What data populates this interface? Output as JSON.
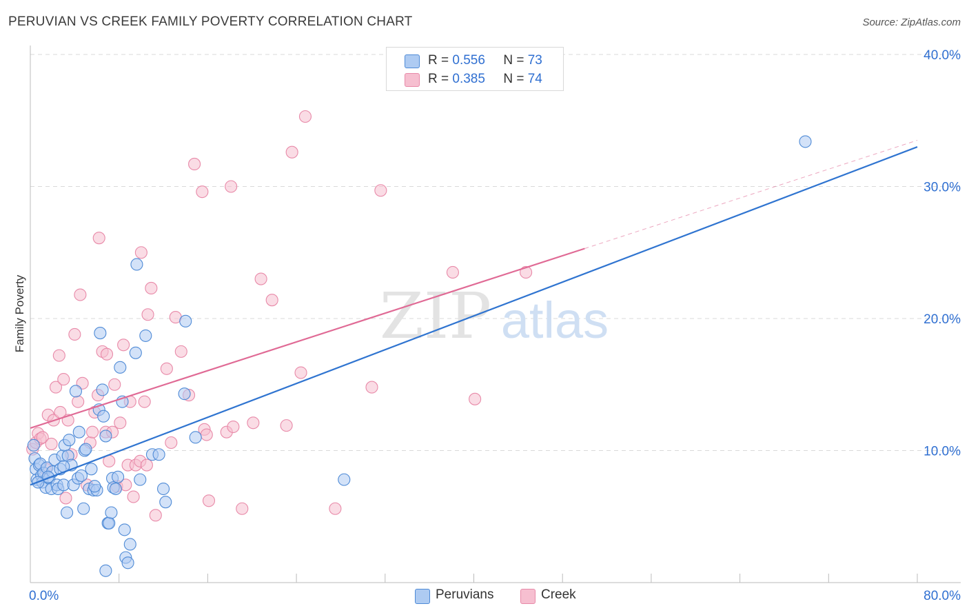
{
  "title": "PERUVIAN VS CREEK FAMILY POVERTY CORRELATION CHART",
  "source": "Source: ZipAtlas.com",
  "watermark": {
    "zip": "ZIP",
    "atlas": "atlas"
  },
  "legend": {
    "peruvians": {
      "r_label": "R =",
      "r": "0.556",
      "n_label": "N =",
      "n": "73"
    },
    "creek": {
      "r_label": "R =",
      "r": "0.385",
      "n_label": "N =",
      "n": "74"
    }
  },
  "colors": {
    "peruvians_fill": "#aecbf2",
    "peruvians_stroke": "#4e8ad6",
    "peruvians_line": "#2f74d0",
    "creek_fill": "#f6bfd0",
    "creek_stroke": "#e889a8",
    "creek_line": "#e06a95",
    "value_text": "#2f6fd1",
    "grid": "#d9d9d9"
  },
  "chart_data": {
    "type": "scatter",
    "title": "PERUVIAN VS CREEK FAMILY POVERTY CORRELATION CHART",
    "xlabel": "",
    "ylabel": "Family Poverty",
    "xlim": [
      0,
      80
    ],
    "ylim": [
      0,
      40
    ],
    "x_tick_labels": [
      "0.0%",
      "80.0%"
    ],
    "y_ticks": [
      10,
      20,
      30,
      40
    ],
    "y_tick_labels": [
      "10.0%",
      "20.0%",
      "30.0%",
      "40.0%"
    ],
    "grid": true,
    "legend_position": "top-center",
    "series": [
      {
        "name": "Peruvians",
        "r": 0.556,
        "n": 73,
        "trend": {
          "x0": 0,
          "y0": 7.4,
          "x1": 80,
          "y1": 33.0
        },
        "points": [
          [
            0.3,
            10.4
          ],
          [
            0.4,
            9.4
          ],
          [
            0.5,
            8.6
          ],
          [
            0.6,
            7.8
          ],
          [
            0.8,
            8.9
          ],
          [
            0.9,
            9.0
          ],
          [
            1.0,
            8.1
          ],
          [
            1.1,
            7.6
          ],
          [
            1.2,
            8.3
          ],
          [
            1.4,
            7.2
          ],
          [
            1.5,
            8.7
          ],
          [
            1.7,
            7.9
          ],
          [
            1.9,
            7.1
          ],
          [
            2.0,
            8.4
          ],
          [
            2.2,
            9.3
          ],
          [
            2.4,
            7.4
          ],
          [
            2.5,
            7.1
          ],
          [
            2.7,
            8.6
          ],
          [
            2.9,
            9.6
          ],
          [
            3.0,
            7.4
          ],
          [
            3.1,
            10.4
          ],
          [
            3.3,
            5.3
          ],
          [
            3.4,
            9.6
          ],
          [
            3.5,
            10.8
          ],
          [
            3.7,
            8.9
          ],
          [
            3.9,
            7.4
          ],
          [
            4.1,
            14.5
          ],
          [
            4.3,
            7.9
          ],
          [
            4.4,
            11.4
          ],
          [
            4.6,
            8.1
          ],
          [
            4.8,
            5.6
          ],
          [
            4.9,
            10.0
          ],
          [
            5.0,
            10.1
          ],
          [
            5.3,
            7.1
          ],
          [
            5.5,
            8.6
          ],
          [
            5.7,
            7.0
          ],
          [
            6.0,
            7.0
          ],
          [
            6.2,
            13.1
          ],
          [
            6.3,
            18.9
          ],
          [
            6.5,
            14.6
          ],
          [
            6.6,
            12.6
          ],
          [
            6.8,
            11.1
          ],
          [
            7.0,
            4.5
          ],
          [
            7.1,
            4.5
          ],
          [
            7.3,
            5.3
          ],
          [
            7.4,
            7.9
          ],
          [
            7.5,
            7.2
          ],
          [
            7.7,
            7.1
          ],
          [
            7.9,
            8.0
          ],
          [
            8.1,
            16.3
          ],
          [
            8.3,
            13.7
          ],
          [
            8.5,
            4.0
          ],
          [
            8.6,
            1.9
          ],
          [
            8.8,
            1.5
          ],
          [
            9.0,
            2.9
          ],
          [
            9.5,
            17.4
          ],
          [
            9.6,
            24.1
          ],
          [
            9.9,
            7.8
          ],
          [
            10.4,
            18.7
          ],
          [
            11.0,
            9.7
          ],
          [
            11.6,
            9.7
          ],
          [
            12.0,
            7.1
          ],
          [
            12.2,
            6.1
          ],
          [
            13.9,
            14.3
          ],
          [
            14.0,
            19.8
          ],
          [
            14.9,
            11.0
          ],
          [
            28.3,
            7.8
          ],
          [
            69.9,
            33.4
          ],
          [
            6.8,
            0.9
          ],
          [
            3.0,
            8.8
          ],
          [
            1.6,
            8.0
          ],
          [
            0.7,
            7.6
          ],
          [
            5.8,
            7.3
          ]
        ]
      },
      {
        "name": "Creek",
        "r": 0.385,
        "n": 74,
        "trend": {
          "x0": 0,
          "y0": 11.7,
          "x1": 50,
          "y1": 25.3,
          "dash_to_x": 80,
          "dash_to_y": 33.5
        },
        "points": [
          [
            0.2,
            10.1
          ],
          [
            0.5,
            10.6
          ],
          [
            0.7,
            11.3
          ],
          [
            0.9,
            10.9
          ],
          [
            1.1,
            11.0
          ],
          [
            1.4,
            8.6
          ],
          [
            1.6,
            12.7
          ],
          [
            1.9,
            10.5
          ],
          [
            2.1,
            12.3
          ],
          [
            2.3,
            14.8
          ],
          [
            2.6,
            17.2
          ],
          [
            3.0,
            15.4
          ],
          [
            3.2,
            6.4
          ],
          [
            3.4,
            12.3
          ],
          [
            3.7,
            9.7
          ],
          [
            4.0,
            18.8
          ],
          [
            4.3,
            13.7
          ],
          [
            4.5,
            21.8
          ],
          [
            4.7,
            15.1
          ],
          [
            5.1,
            7.4
          ],
          [
            5.4,
            10.6
          ],
          [
            5.6,
            11.4
          ],
          [
            5.8,
            12.9
          ],
          [
            6.1,
            14.2
          ],
          [
            6.2,
            26.1
          ],
          [
            6.5,
            17.5
          ],
          [
            6.8,
            11.4
          ],
          [
            6.9,
            17.3
          ],
          [
            7.1,
            9.2
          ],
          [
            7.4,
            11.4
          ],
          [
            7.6,
            15.0
          ],
          [
            7.8,
            7.3
          ],
          [
            8.1,
            12.1
          ],
          [
            8.4,
            18.0
          ],
          [
            8.6,
            7.4
          ],
          [
            8.8,
            8.9
          ],
          [
            9.0,
            13.7
          ],
          [
            9.3,
            6.5
          ],
          [
            9.5,
            8.9
          ],
          [
            9.9,
            9.2
          ],
          [
            10.0,
            25.0
          ],
          [
            10.3,
            13.7
          ],
          [
            10.5,
            8.9
          ],
          [
            10.6,
            20.3
          ],
          [
            10.9,
            22.3
          ],
          [
            11.3,
            5.1
          ],
          [
            12.3,
            16.2
          ],
          [
            12.7,
            10.6
          ],
          [
            13.1,
            20.1
          ],
          [
            13.6,
            17.5
          ],
          [
            14.3,
            14.2
          ],
          [
            14.8,
            31.7
          ],
          [
            15.5,
            29.6
          ],
          [
            15.7,
            11.6
          ],
          [
            15.9,
            11.2
          ],
          [
            16.1,
            6.2
          ],
          [
            17.7,
            11.4
          ],
          [
            18.1,
            30.0
          ],
          [
            18.3,
            11.8
          ],
          [
            19.1,
            5.6
          ],
          [
            20.1,
            12.1
          ],
          [
            20.8,
            23.0
          ],
          [
            21.8,
            21.4
          ],
          [
            23.1,
            11.9
          ],
          [
            23.6,
            32.6
          ],
          [
            24.4,
            15.9
          ],
          [
            24.8,
            35.3
          ],
          [
            27.5,
            5.6
          ],
          [
            30.8,
            14.8
          ],
          [
            31.6,
            29.7
          ],
          [
            38.1,
            23.5
          ],
          [
            40.1,
            13.9
          ],
          [
            44.7,
            23.5
          ],
          [
            2.7,
            12.9
          ]
        ]
      }
    ]
  }
}
